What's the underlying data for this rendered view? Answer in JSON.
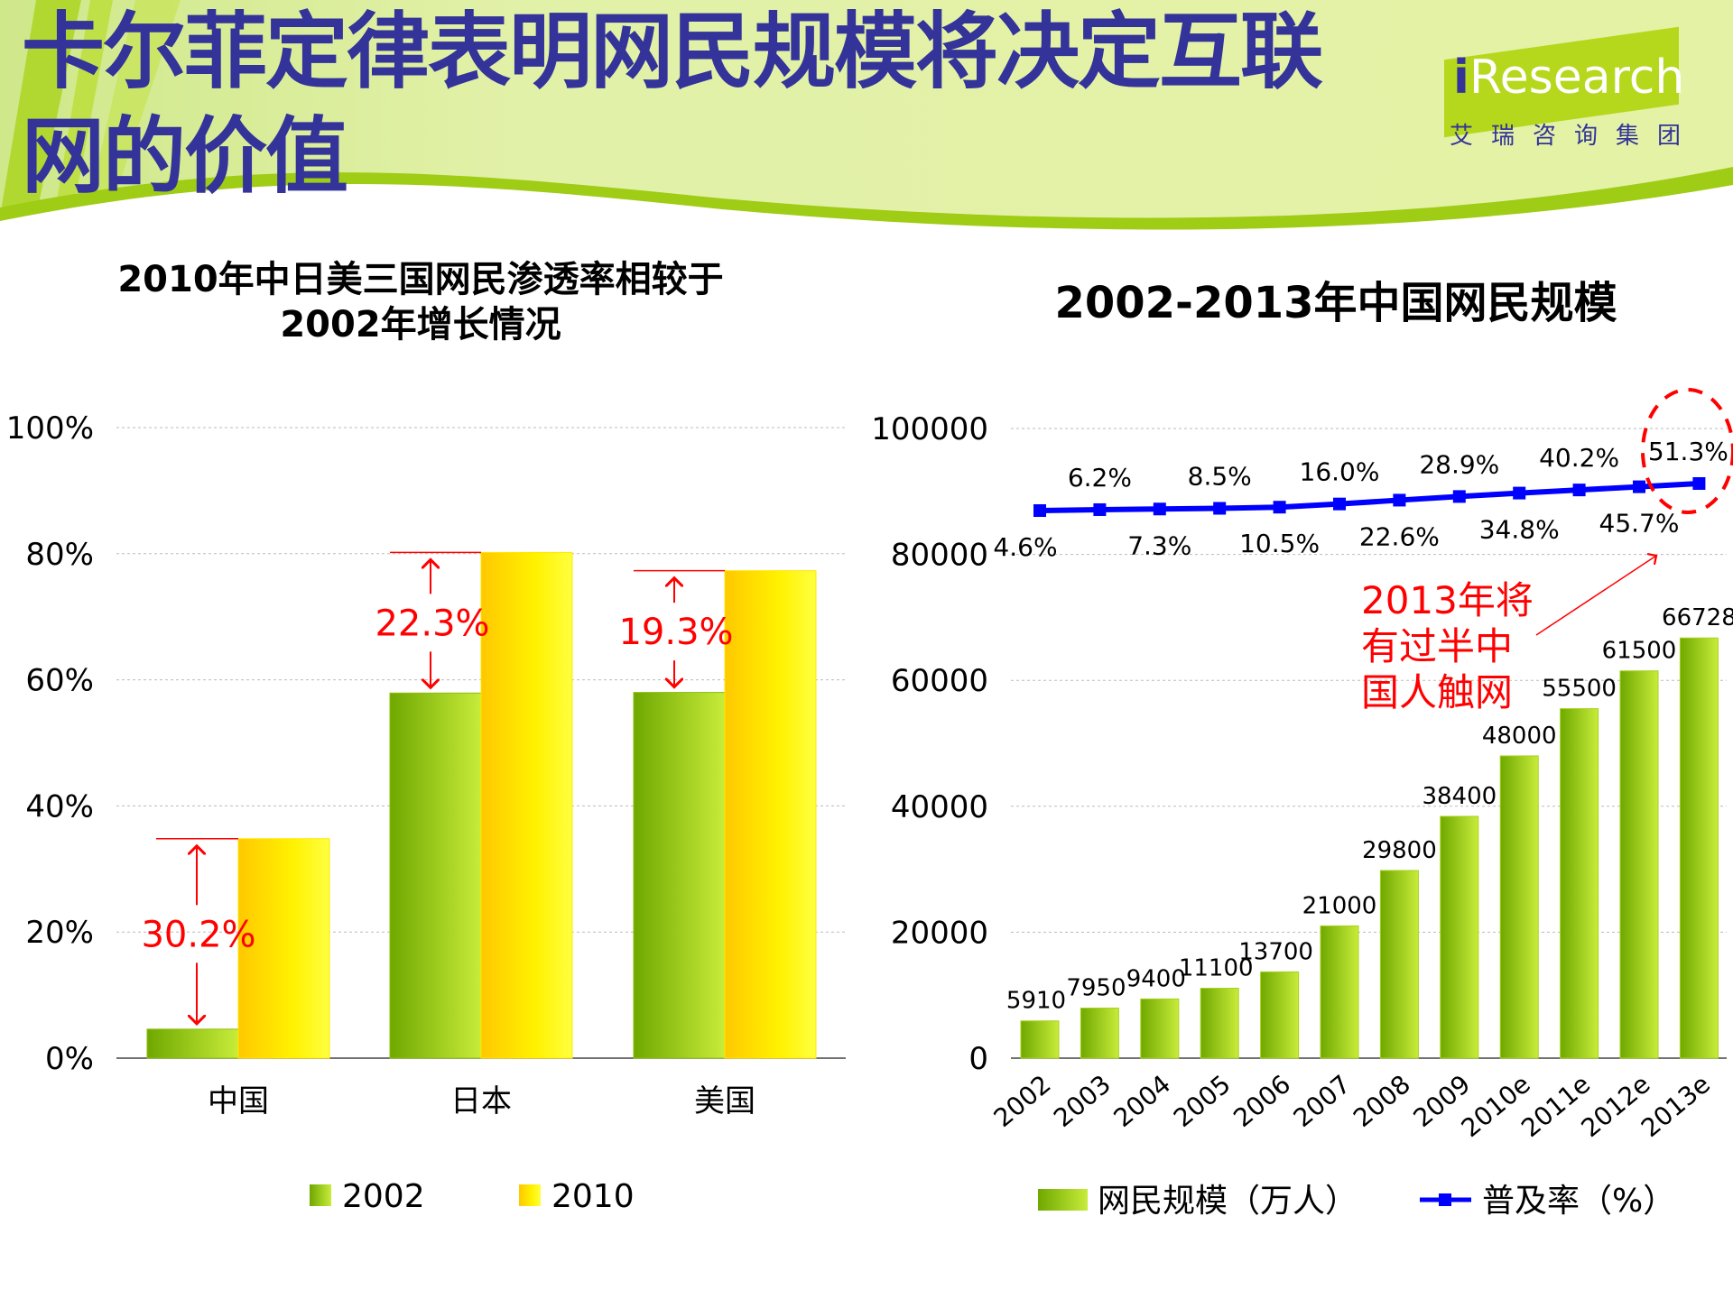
{
  "header": {
    "title_line1": "卡尔菲定律表明网民规模将决定互联",
    "title_line2": "网的价值",
    "logo": {
      "brand_i": "i",
      "brand_rest": "Research",
      "subtitle": "艾瑞咨询集团"
    }
  },
  "colors": {
    "title": "#333399",
    "bar_2002": "#8cc00a",
    "bar_2010": "#ffd800",
    "line": "#0000ff",
    "annotation": "#ff0000"
  },
  "chart_data": [
    {
      "type": "bar",
      "title_line1": "2010年中日美三国网民渗透率相较于",
      "title_line2": "2002年增长情况",
      "categories": [
        "中国",
        "日本",
        "美国"
      ],
      "yticks": [
        "0%",
        "20%",
        "40%",
        "60%",
        "80%",
        "100%"
      ],
      "ylim": [
        0,
        100
      ],
      "grid": true,
      "legend_placement": "bottom",
      "series": [
        {
          "name": "2002",
          "values": [
            4.6,
            57.9,
            58.0
          ]
        },
        {
          "name": "2010",
          "values": [
            34.8,
            80.2,
            77.3
          ]
        }
      ],
      "annotations": [
        "30.2%",
        "22.3%",
        "19.3%"
      ]
    },
    {
      "type": "bar+line",
      "title": "2002-2013年中国网民规模",
      "categories": [
        "2002",
        "2003",
        "2004",
        "2005",
        "2006",
        "2007",
        "2008",
        "2009",
        "2010e",
        "2011e",
        "2012e",
        "2013e"
      ],
      "yticks": [
        "0",
        "20000",
        "40000",
        "60000",
        "80000",
        "100000"
      ],
      "ylim": [
        0,
        100000
      ],
      "grid": true,
      "legend_placement": "bottom",
      "series": [
        {
          "name": "网民规模（万人）",
          "type": "bar",
          "values": [
            5910,
            7950,
            9400,
            11100,
            13700,
            21000,
            29800,
            38400,
            48000,
            55500,
            61500,
            66728
          ]
        },
        {
          "name": "普及率（%）",
          "type": "line",
          "values": [
            4.6,
            6.2,
            7.3,
            8.5,
            10.5,
            16.0,
            22.6,
            28.9,
            34.8,
            40.2,
            45.7,
            51.3
          ],
          "labels": [
            "4.6%",
            "6.2%",
            "7.3%",
            "8.5%",
            "10.5%",
            "16.0%",
            "22.6%",
            "28.9%",
            "34.8%",
            "40.2%",
            "45.7%",
            "51.3%"
          ]
        }
      ],
      "callout": [
        "2013年将",
        "有过半中",
        "国人触网"
      ]
    }
  ]
}
